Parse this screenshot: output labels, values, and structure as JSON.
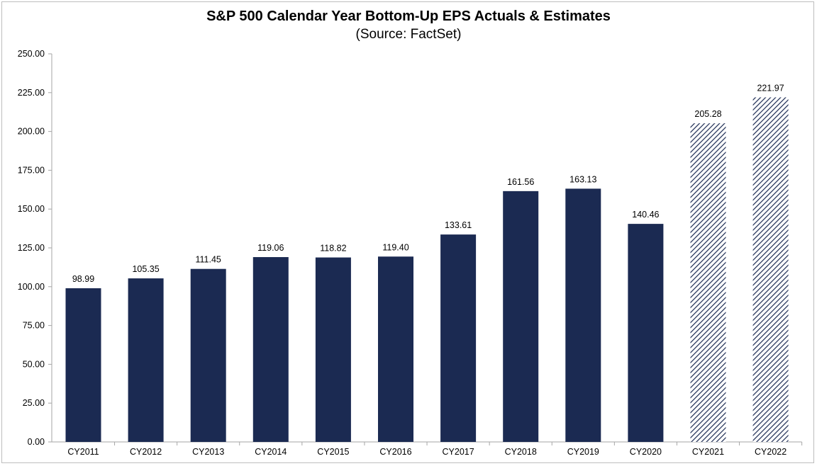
{
  "chart_data": {
    "type": "bar",
    "title": "S&P 500 Calendar Year Bottom-Up EPS Actuals & Estimates",
    "subtitle": "(Source: FactSet)",
    "categories": [
      "CY2011",
      "CY2012",
      "CY2013",
      "CY2014",
      "CY2015",
      "CY2016",
      "CY2017",
      "CY2018",
      "CY2019",
      "CY2020",
      "CY2021",
      "CY2022"
    ],
    "values": [
      98.99,
      105.35,
      111.45,
      119.06,
      118.82,
      119.4,
      133.61,
      161.56,
      163.13,
      140.46,
      205.28,
      221.97
    ],
    "value_labels": [
      "98.99",
      "105.35",
      "111.45",
      "119.06",
      "118.82",
      "119.40",
      "133.61",
      "161.56",
      "163.13",
      "140.46",
      "205.28",
      "221.97"
    ],
    "estimate_flags": [
      false,
      false,
      false,
      false,
      false,
      false,
      false,
      false,
      false,
      false,
      true,
      true
    ],
    "ylim": [
      0,
      250
    ],
    "yticks": [
      "0.00",
      "25.00",
      "50.00",
      "75.00",
      "100.00",
      "125.00",
      "150.00",
      "175.00",
      "200.00",
      "225.00",
      "250.00"
    ],
    "ytick_values": [
      0,
      25,
      50,
      75,
      100,
      125,
      150,
      175,
      200,
      225,
      250
    ],
    "grid": false,
    "legend": "none",
    "colors": {
      "actual": "#1b2a52",
      "estimate_stripe": "#1b2a52",
      "estimate_background": "#ffffff"
    }
  }
}
